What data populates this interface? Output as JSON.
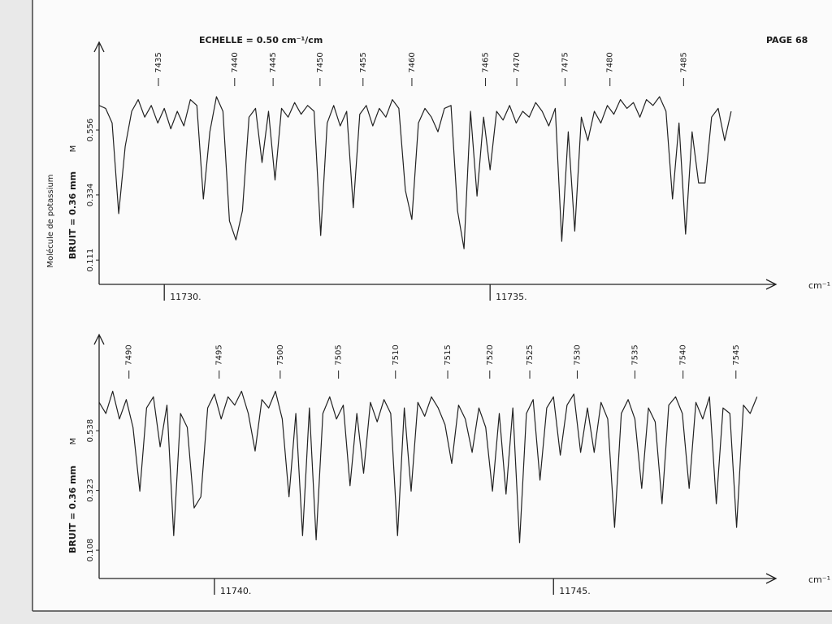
{
  "header": {
    "scale": "ECHELLE = 0.50 cm⁻¹/cm",
    "page": "PAGE 68",
    "side_label": "Molécule de potassium"
  },
  "chart_data": [
    {
      "type": "line",
      "ylabel": "BRUIT = 0.36 mm",
      "y_marker": "M",
      "xlabel": "cm⁻¹",
      "color": "#222222",
      "xlim": [
        11729.0,
        11739.2
      ],
      "ylim": [
        0.028,
        0.834
      ],
      "xticks": [
        {
          "value": 11730,
          "label": "11730."
        },
        {
          "value": 11735,
          "label": "11735."
        }
      ],
      "yticks": [
        0.111,
        0.334,
        0.556
      ],
      "line_ids": [
        {
          "value": 11729.91,
          "label": "7435"
        },
        {
          "value": 11731.08,
          "label": "7440"
        },
        {
          "value": 11731.67,
          "label": "7445"
        },
        {
          "value": 11732.39,
          "label": "7450"
        },
        {
          "value": 11733.05,
          "label": "7455"
        },
        {
          "value": 11733.8,
          "label": "7460"
        },
        {
          "value": 11734.93,
          "label": "7465"
        },
        {
          "value": 11735.41,
          "label": "7470"
        },
        {
          "value": 11736.15,
          "label": "7475"
        },
        {
          "value": 11736.84,
          "label": "7480"
        },
        {
          "value": 11737.97,
          "label": "7485"
        }
      ],
      "x": [
        11729,
        11729.1,
        11729.2,
        11729.3,
        11729.4,
        11729.5,
        11729.6,
        11729.7,
        11729.8,
        11729.9,
        11730,
        11730.1,
        11730.2,
        11730.3,
        11730.4,
        11730.5,
        11730.6,
        11730.7,
        11730.8,
        11730.9,
        11731,
        11731.1,
        11731.2,
        11731.3,
        11731.4,
        11731.5,
        11731.6,
        11731.7,
        11731.8,
        11731.9,
        11732,
        11732.1,
        11732.2,
        11732.3,
        11732.4,
        11732.5,
        11732.6,
        11732.7,
        11732.8,
        11732.9,
        11733,
        11733.1,
        11733.2,
        11733.3,
        11733.4,
        11733.5,
        11733.6,
        11733.7,
        11733.8,
        11733.9,
        11734,
        11734.1,
        11734.2,
        11734.3,
        11734.4,
        11734.5,
        11734.6,
        11734.7,
        11734.8,
        11734.9,
        11735,
        11735.1,
        11735.2,
        11735.3,
        11735.4,
        11735.5,
        11735.6,
        11735.7,
        11735.8,
        11735.9,
        11736,
        11736.1,
        11736.2,
        11736.3,
        11736.4,
        11736.5,
        11736.6,
        11736.7,
        11736.8,
        11736.9,
        11737,
        11737.1,
        11737.2,
        11737.3,
        11737.4,
        11737.5,
        11737.6,
        11737.7,
        11737.8,
        11737.9,
        11738,
        11738.1,
        11738.2,
        11738.3,
        11738.4,
        11738.5,
        11738.6,
        11738.7
      ],
      "values": [
        0.64,
        0.63,
        0.58,
        0.27,
        0.5,
        0.62,
        0.66,
        0.6,
        0.64,
        0.58,
        0.63,
        0.56,
        0.62,
        0.57,
        0.66,
        0.64,
        0.32,
        0.55,
        0.67,
        0.62,
        0.245,
        0.18,
        0.28,
        0.6,
        0.63,
        0.445,
        0.62,
        0.385,
        0.63,
        0.6,
        0.65,
        0.61,
        0.64,
        0.62,
        0.195,
        0.58,
        0.64,
        0.57,
        0.62,
        0.29,
        0.61,
        0.64,
        0.57,
        0.63,
        0.6,
        0.66,
        0.63,
        0.35,
        0.25,
        0.58,
        0.63,
        0.6,
        0.55,
        0.63,
        0.64,
        0.28,
        0.15,
        0.62,
        0.33,
        0.6,
        0.42,
        0.62,
        0.59,
        0.64,
        0.58,
        0.62,
        0.6,
        0.65,
        0.62,
        0.57,
        0.63,
        0.175,
        0.55,
        0.21,
        0.6,
        0.52,
        0.62,
        0.58,
        0.64,
        0.61,
        0.66,
        0.63,
        0.65,
        0.6,
        0.66,
        0.64,
        0.67,
        0.62,
        0.32,
        0.58,
        0.2,
        0.55,
        0.375,
        0.375,
        0.6,
        0.63,
        0.52,
        0.62
      ]
    },
    {
      "type": "line",
      "ylabel": "BRUIT = 0.36 mm",
      "y_marker": "M",
      "xlabel": "cm⁻¹",
      "color": "#222222",
      "xlim": [
        11738.3,
        11748.1
      ],
      "ylim": [
        0.006,
        0.86
      ],
      "xticks": [
        {
          "value": 11740,
          "label": "11740."
        },
        {
          "value": 11745,
          "label": "11745."
        }
      ],
      "yticks": [
        0.108,
        0.323,
        0.538
      ],
      "line_ids": [
        {
          "value": 11738.74,
          "label": "7490"
        },
        {
          "value": 11740.07,
          "label": "7495"
        },
        {
          "value": 11740.97,
          "label": "7500"
        },
        {
          "value": 11741.83,
          "label": "7505"
        },
        {
          "value": 11742.67,
          "label": "7510"
        },
        {
          "value": 11743.44,
          "label": "7515"
        },
        {
          "value": 11744.06,
          "label": "7520"
        },
        {
          "value": 11744.65,
          "label": "7525"
        },
        {
          "value": 11745.35,
          "label": "7530"
        },
        {
          "value": 11746.2,
          "label": "7535"
        },
        {
          "value": 11746.91,
          "label": "7540"
        },
        {
          "value": 11747.69,
          "label": "7545"
        }
      ],
      "x": [
        11738.3,
        11738.4,
        11738.5,
        11738.6,
        11738.7,
        11738.8,
        11738.9,
        11739,
        11739.1,
        11739.2,
        11739.3,
        11739.4,
        11739.5,
        11739.6,
        11739.7,
        11739.8,
        11739.9,
        11740,
        11740.1,
        11740.2,
        11740.3,
        11740.4,
        11740.5,
        11740.6,
        11740.7,
        11740.8,
        11740.9,
        11741,
        11741.1,
        11741.2,
        11741.3,
        11741.4,
        11741.5,
        11741.6,
        11741.7,
        11741.8,
        11741.9,
        11742,
        11742.1,
        11742.2,
        11742.3,
        11742.4,
        11742.5,
        11742.6,
        11742.7,
        11742.8,
        11742.9,
        11743,
        11743.1,
        11743.2,
        11743.3,
        11743.4,
        11743.5,
        11743.6,
        11743.7,
        11743.8,
        11743.9,
        11744,
        11744.1,
        11744.2,
        11744.3,
        11744.4,
        11744.5,
        11744.6,
        11744.7,
        11744.8,
        11744.9,
        11745,
        11745.1,
        11745.2,
        11745.3,
        11745.4,
        11745.5,
        11745.6,
        11745.7,
        11745.8,
        11745.9,
        11746,
        11746.1,
        11746.2,
        11746.3,
        11746.4,
        11746.5,
        11746.6,
        11746.7,
        11746.8,
        11746.9,
        11747,
        11747.1,
        11747.2,
        11747.3,
        11747.4,
        11747.5,
        11747.6,
        11747.7,
        11747.8,
        11747.9,
        11748
      ],
      "values": [
        0.64,
        0.6,
        0.68,
        0.58,
        0.65,
        0.55,
        0.32,
        0.62,
        0.66,
        0.48,
        0.63,
        0.16,
        0.6,
        0.55,
        0.26,
        0.3,
        0.62,
        0.67,
        0.58,
        0.66,
        0.63,
        0.68,
        0.6,
        0.465,
        0.65,
        0.62,
        0.68,
        0.58,
        0.3,
        0.6,
        0.16,
        0.62,
        0.145,
        0.6,
        0.66,
        0.58,
        0.63,
        0.34,
        0.6,
        0.385,
        0.64,
        0.57,
        0.65,
        0.6,
        0.16,
        0.62,
        0.32,
        0.64,
        0.59,
        0.66,
        0.62,
        0.56,
        0.42,
        0.63,
        0.58,
        0.46,
        0.62,
        0.55,
        0.32,
        0.6,
        0.31,
        0.62,
        0.135,
        0.6,
        0.65,
        0.36,
        0.62,
        0.66,
        0.45,
        0.63,
        0.67,
        0.46,
        0.62,
        0.46,
        0.64,
        0.58,
        0.19,
        0.6,
        0.65,
        0.58,
        0.33,
        0.62,
        0.57,
        0.275,
        0.63,
        0.66,
        0.6,
        0.33,
        0.64,
        0.58,
        0.66,
        0.275,
        0.62,
        0.6,
        0.19,
        0.63,
        0.6,
        0.66
      ]
    }
  ]
}
